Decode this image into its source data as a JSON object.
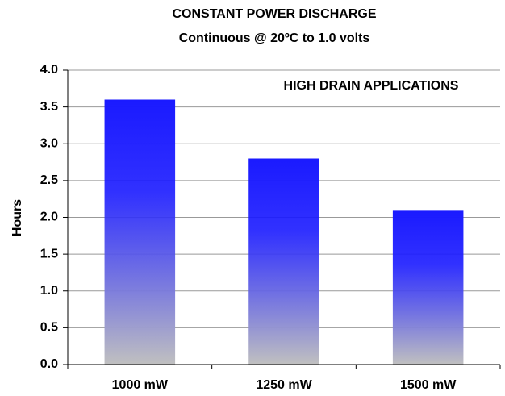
{
  "chart_data": {
    "type": "bar",
    "title": "CONSTANT POWER DISCHARGE",
    "subtitle": "Continuous  @ 20ºC to 1.0 volts",
    "annotation": "HIGH  DRAIN APPLICATIONS",
    "y_label": "Hours",
    "categories": [
      "1000 mW",
      "1250 mW",
      "1500 mW"
    ],
    "values": [
      3.6,
      2.8,
      2.1
    ],
    "color": "#1a1aff",
    "gradient_to": "#c0c0c0",
    "ylim": [
      0,
      4
    ],
    "yticks": [
      {
        "value": 0,
        "label": "0.0"
      },
      {
        "value": 0.5,
        "label": "0.5"
      },
      {
        "value": 1,
        "label": "1.0"
      },
      {
        "value": 1.5,
        "label": "1.5"
      },
      {
        "value": 2,
        "label": "2.0"
      },
      {
        "value": 2.5,
        "label": "2.5"
      },
      {
        "value": 3,
        "label": "3.0"
      },
      {
        "value": 3.5,
        "label": "3.5"
      },
      {
        "value": 4,
        "label": "4.0"
      }
    ],
    "grid": true
  }
}
